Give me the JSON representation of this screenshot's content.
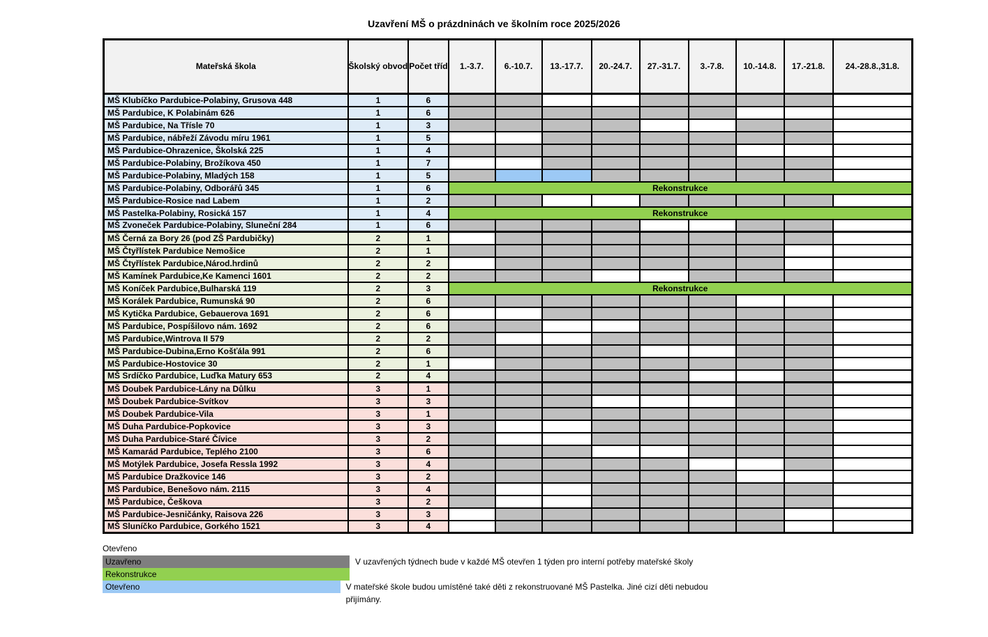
{
  "title": "Uzavření MŠ o prázdninách ve školním roce 2025/2026",
  "colors": {
    "closed_cell": "#BFBFBF",
    "renovation": "#92D050",
    "open_special": "#9CC9F5",
    "legend_closed": "#7F7F7F",
    "district_1_tint": "#DEEBF7",
    "district_2_tint": "#EBF1DE",
    "district_3_tint": "#FBDFDB",
    "header_fill": "#F2F2F2"
  },
  "table": {
    "headers": {
      "school": "Mateřská škola",
      "district": "Školský obvod",
      "classes": "Počet tříd",
      "weeks": [
        "1.-3.7.",
        "6.-10.7.",
        "13.-17.7.",
        "20.-24.7.",
        "27.-31.7.",
        "3.-7.8.",
        "10.-14.8.",
        "17.-21.8.",
        "24.-28.8.,31.8."
      ]
    },
    "rows": [
      {
        "school": "MŠ Klubíčko Pardubice-Polabiny, Grusova 448",
        "district": "1",
        "classes": "6",
        "cells": [
          "closed",
          "closed",
          "open",
          "open",
          "closed",
          "closed",
          "closed",
          "closed",
          "open"
        ]
      },
      {
        "school": "MŠ Pardubice, K Polabinám 626",
        "district": "1",
        "classes": "6",
        "cells": [
          "closed",
          "closed",
          "closed",
          "closed",
          "closed",
          "closed",
          "open",
          "open",
          "open"
        ]
      },
      {
        "school": "MŠ Pardubice, Na Třísle 70",
        "district": "1",
        "classes": "3",
        "cells": [
          "closed",
          "closed",
          "closed",
          "closed",
          "open",
          "open",
          "closed",
          "closed",
          "open"
        ]
      },
      {
        "school": "MŠ Pardubice, nábřeží Závodu míru 1961",
        "district": "1",
        "classes": "5",
        "cells": [
          "open",
          "open",
          "closed",
          "closed",
          "closed",
          "closed",
          "closed",
          "closed",
          "open"
        ]
      },
      {
        "school": "MŠ Pardubice-Ohrazenice, Školská 225",
        "district": "1",
        "classes": "4",
        "cells": [
          "closed",
          "closed",
          "closed",
          "closed",
          "closed",
          "closed",
          "open",
          "open",
          "open"
        ]
      },
      {
        "school": "MŠ Pardubice-Polabiny, Brožíkova 450",
        "district": "1",
        "classes": "7",
        "cells": [
          "open",
          "open",
          "closed",
          "closed",
          "closed",
          "closed",
          "closed",
          "closed",
          "open"
        ]
      },
      {
        "school": "MŠ Pardubice-Polabiny, Mladých 158",
        "district": "1",
        "classes": "5",
        "cells": [
          "closed",
          "special",
          "special",
          "closed",
          "closed",
          "closed",
          "closed",
          "closed",
          "open"
        ]
      },
      {
        "school": "MŠ Pardubice-Polabiny, Odborářů 345",
        "district": "1",
        "classes": "6",
        "renovation_label": "Rekonstrukce"
      },
      {
        "school": "MŠ Pardubice-Rosice nad Labem",
        "district": "1",
        "classes": "2",
        "cells": [
          "closed",
          "closed",
          "open",
          "open",
          "closed",
          "closed",
          "closed",
          "closed",
          "open"
        ]
      },
      {
        "school": "MŠ Pastelka-Polabiny, Rosická 157",
        "district": "1",
        "classes": "4",
        "renovation_label": "Rekonstrukce"
      },
      {
        "school": "MŠ Zvoneček Pardubice-Polabiny, Sluneční 284",
        "district": "1",
        "classes": "6",
        "cells": [
          "closed",
          "closed",
          "closed",
          "closed",
          "open",
          "open",
          "closed",
          "closed",
          "open"
        ]
      },
      {
        "school": "MŠ Černá za Bory 26 (pod ZŠ Pardubičky)",
        "district": "2",
        "classes": "1",
        "cells": [
          "open",
          "closed",
          "closed",
          "closed",
          "closed",
          "closed",
          "closed",
          "closed",
          "open"
        ]
      },
      {
        "school": "MŠ Čtyřlístek Pardubice Nemošice",
        "district": "2",
        "classes": "1",
        "cells": [
          "closed",
          "closed",
          "closed",
          "closed",
          "closed",
          "closed",
          "closed",
          "open",
          "open"
        ]
      },
      {
        "school": "MŠ Čtyřlístek Pardubice,Národ.hrdinů",
        "district": "2",
        "classes": "2",
        "cells": [
          "open",
          "closed",
          "closed",
          "closed",
          "closed",
          "closed",
          "closed",
          "open",
          "open"
        ]
      },
      {
        "school": "MŠ Kamínek Pardubice,Ke Kamenci 1601",
        "district": "2",
        "classes": "2",
        "cells": [
          "closed",
          "closed",
          "closed",
          "open",
          "open",
          "closed",
          "closed",
          "closed",
          "open"
        ]
      },
      {
        "school": "MŠ Koníček Pardubice,Bulharská 119",
        "district": "2",
        "classes": "3",
        "renovation_label": "Rekonstrukce"
      },
      {
        "school": "MŠ Korálek Pardubice, Rumunská 90",
        "district": "2",
        "classes": "6",
        "cells": [
          "closed",
          "closed",
          "closed",
          "closed",
          "closed",
          "closed",
          "open",
          "open",
          "open"
        ]
      },
      {
        "school": "MŠ Kytička Pardubice, Gebauerova 1691",
        "district": "2",
        "classes": "6",
        "cells": [
          "open",
          "open",
          "closed",
          "closed",
          "closed",
          "closed",
          "closed",
          "closed",
          "open"
        ]
      },
      {
        "school": "MŠ Pardubice, Pospíšilovo nám. 1692",
        "district": "2",
        "classes": "6",
        "cells": [
          "closed",
          "closed",
          "open",
          "open",
          "closed",
          "closed",
          "closed",
          "closed",
          "open"
        ]
      },
      {
        "school": "MŠ Pardubice,Wintrova II 579",
        "district": "2",
        "classes": "2",
        "cells": [
          "closed",
          "open",
          "open",
          "closed",
          "closed",
          "closed",
          "closed",
          "closed",
          "open"
        ]
      },
      {
        "school": "MŠ Pardubice-Dubina,Erno Košťála 991",
        "district": "2",
        "classes": "6",
        "cells": [
          "closed",
          "closed",
          "closed",
          "closed",
          "open",
          "open",
          "closed",
          "closed",
          "open"
        ]
      },
      {
        "school": "MŠ Pardubice-Hostovice 30",
        "district": "2",
        "classes": "1",
        "cells": [
          "open",
          "closed",
          "closed",
          "closed",
          "closed",
          "closed",
          "closed",
          "closed",
          "open"
        ]
      },
      {
        "school": "MŠ Srdíčko Pardubice, Luďka Matury 653",
        "district": "2",
        "classes": "4",
        "cells": [
          "closed",
          "closed",
          "closed",
          "closed",
          "closed",
          "open",
          "open",
          "closed",
          "open"
        ]
      },
      {
        "school": "MŠ Doubek Pardubice-Lány na Důlku",
        "district": "3",
        "classes": "1",
        "cells": [
          "closed",
          "closed",
          "closed",
          "closed",
          "closed",
          "closed",
          "closed",
          "closed",
          "open"
        ]
      },
      {
        "school": "MŠ Doubek Pardubice-Svítkov",
        "district": "3",
        "classes": "3",
        "cells": [
          "closed",
          "closed",
          "closed",
          "open",
          "open",
          "open",
          "closed",
          "closed",
          "open"
        ]
      },
      {
        "school": "MŠ Doubek Pardubice-Vila",
        "district": "3",
        "classes": "1",
        "cells": [
          "closed",
          "closed",
          "closed",
          "closed",
          "closed",
          "closed",
          "closed",
          "closed",
          "open"
        ]
      },
      {
        "school": "MŠ Duha Pardubice-Popkovice",
        "district": "3",
        "classes": "3",
        "cells": [
          "closed",
          "open",
          "open",
          "closed",
          "closed",
          "closed",
          "closed",
          "closed",
          "open"
        ]
      },
      {
        "school": "MŠ Duha Pardubice-Staré Čívice",
        "district": "3",
        "classes": "2",
        "cells": [
          "closed",
          "open",
          "open",
          "closed",
          "closed",
          "closed",
          "closed",
          "closed",
          "open"
        ]
      },
      {
        "school": "MŠ Kamarád Pardubice, Teplého 2100",
        "district": "3",
        "classes": "6",
        "cells": [
          "closed",
          "closed",
          "closed",
          "open",
          "open",
          "closed",
          "closed",
          "closed",
          "open"
        ]
      },
      {
        "school": "MŠ Motýlek Pardubice, Josefa Ressla 1992",
        "district": "3",
        "classes": "4",
        "cells": [
          "closed",
          "closed",
          "closed",
          "closed",
          "closed",
          "open",
          "open",
          "closed",
          "open"
        ]
      },
      {
        "school": "MŠ Pardubice Dražkovice 146",
        "district": "3",
        "classes": "2",
        "cells": [
          "closed",
          "closed",
          "closed",
          "closed",
          "closed",
          "closed",
          "open",
          "open",
          "open"
        ]
      },
      {
        "school": "MŠ Pardubice, Benešovo nám. 2115",
        "district": "3",
        "classes": "4",
        "cells": [
          "closed",
          "open",
          "open",
          "closed",
          "closed",
          "closed",
          "closed",
          "closed",
          "open"
        ]
      },
      {
        "school": "MŠ Pardubice, Češkova",
        "district": "3",
        "classes": "2",
        "cells": [
          "closed",
          "open",
          "open",
          "closed",
          "closed",
          "closed",
          "closed",
          "closed",
          "open"
        ]
      },
      {
        "school": "MŠ Pardubice-Jesničánky, Raisova 226",
        "district": "3",
        "classes": "3",
        "cells": [
          "open",
          "closed",
          "closed",
          "closed",
          "closed",
          "closed",
          "closed",
          "open",
          "open"
        ]
      },
      {
        "school": "MŠ Sluníčko Pardubice, Gorkého 1521",
        "district": "3",
        "classes": "4",
        "cells": [
          "open",
          "closed",
          "closed",
          "closed",
          "closed",
          "closed",
          "closed",
          "open",
          "open"
        ]
      }
    ]
  },
  "legend": {
    "open_plain": "Otevřeno",
    "closed_label": "Uzavřeno",
    "closed_note": "V uzavřených týdnech bude v každé MŠ otevřen 1 týden pro interní potřeby mateřské školy",
    "renovation_label": "Rekonstrukce",
    "open_special_label": "Otevřeno",
    "open_special_note": "V mateřské škole budou umístěné také děti z rekonstruované MŠ Pastelka. Jiné cizí děti nebudou přijímány."
  }
}
